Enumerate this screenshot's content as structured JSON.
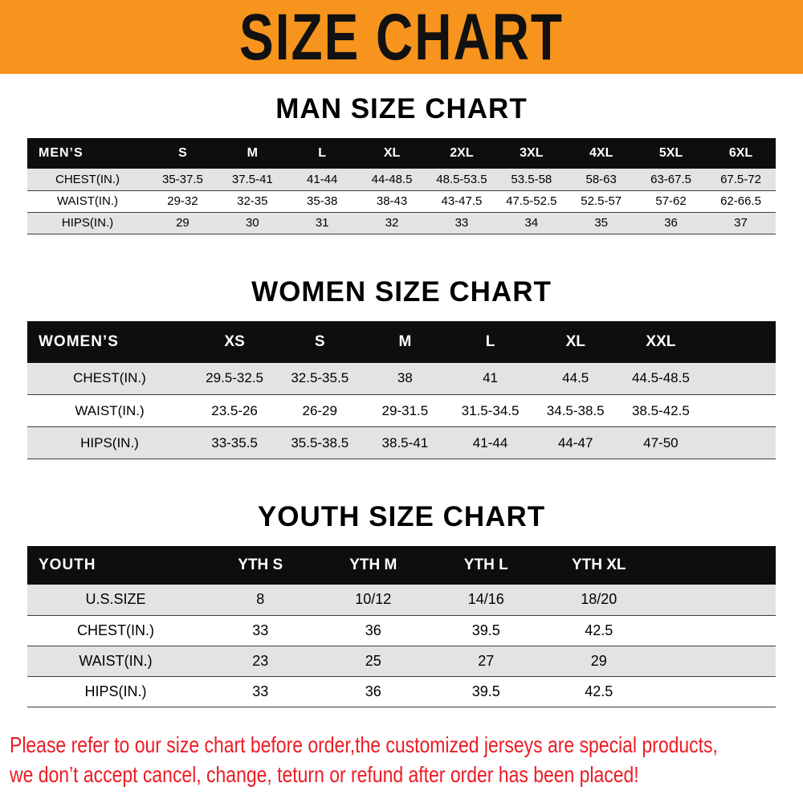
{
  "banner": {
    "title": "SIZE CHART"
  },
  "colors": {
    "banner_bg": "#f7941e",
    "banner_text": "#111111",
    "table_header_bg": "#0e0e0e",
    "table_header_text": "#ffffff",
    "row_stripe": "#e3e3e3",
    "footer_text": "#ec1c24"
  },
  "sections": [
    {
      "heading": "MAN SIZE CHART",
      "table": {
        "header_label": "MEN’S",
        "columns": [
          "S",
          "M",
          "L",
          "XL",
          "2XL",
          "3XL",
          "4XL",
          "5XL",
          "6XL"
        ],
        "rows": [
          {
            "label": "CHEST(IN.)",
            "values": [
              "35-37.5",
              "37.5-41",
              "41-44",
              "44-48.5",
              "48.5-53.5",
              "53.5-58",
              "58-63",
              "63-67.5",
              "67.5-72"
            ]
          },
          {
            "label": "WAIST(IN.)",
            "values": [
              "29-32",
              "32-35",
              "35-38",
              "38-43",
              "43-47.5",
              "47.5-52.5",
              "52.5-57",
              "57-62",
              "62-66.5"
            ]
          },
          {
            "label": "HIPS(IN.)",
            "values": [
              "29",
              "30",
              "31",
              "32",
              "33",
              "34",
              "35",
              "36",
              "37"
            ]
          }
        ]
      }
    },
    {
      "heading": "WOMEN SIZE CHART",
      "table": {
        "header_label": "WOMEN’S",
        "columns": [
          "XS",
          "S",
          "M",
          "L",
          "XL",
          "XXL"
        ],
        "rows": [
          {
            "label": "CHEST(IN.)",
            "values": [
              "29.5-32.5",
              "32.5-35.5",
              "38",
              "41",
              "44.5",
              "44.5-48.5"
            ]
          },
          {
            "label": "WAIST(IN.)",
            "values": [
              "23.5-26",
              "26-29",
              "29-31.5",
              "31.5-34.5",
              "34.5-38.5",
              "38.5-42.5"
            ]
          },
          {
            "label": "HIPS(IN.)",
            "values": [
              "33-35.5",
              "35.5-38.5",
              "38.5-41",
              "41-44",
              "44-47",
              "47-50"
            ]
          }
        ]
      }
    },
    {
      "heading": "YOUTH SIZE CHART",
      "table": {
        "header_label": "YOUTH",
        "columns": [
          "YTH S",
          "YTH M",
          "YTH L",
          "YTH XL"
        ],
        "rows": [
          {
            "label": "U.S.SIZE",
            "values": [
              "8",
              "10/12",
              "14/16",
              "18/20"
            ]
          },
          {
            "label": "CHEST(IN.)",
            "values": [
              "33",
              "36",
              "39.5",
              "42.5"
            ]
          },
          {
            "label": "WAIST(IN.)",
            "values": [
              "23",
              "25",
              "27",
              "29"
            ]
          },
          {
            "label": "HIPS(IN.)",
            "values": [
              "33",
              "36",
              "39.5",
              "42.5"
            ]
          }
        ]
      }
    }
  ],
  "footer": {
    "line1": "Please refer to our size chart before order,the customized jerseys are special products,",
    "line2": "we don’t accept cancel, change, teturn or refund after order has been placed!"
  }
}
